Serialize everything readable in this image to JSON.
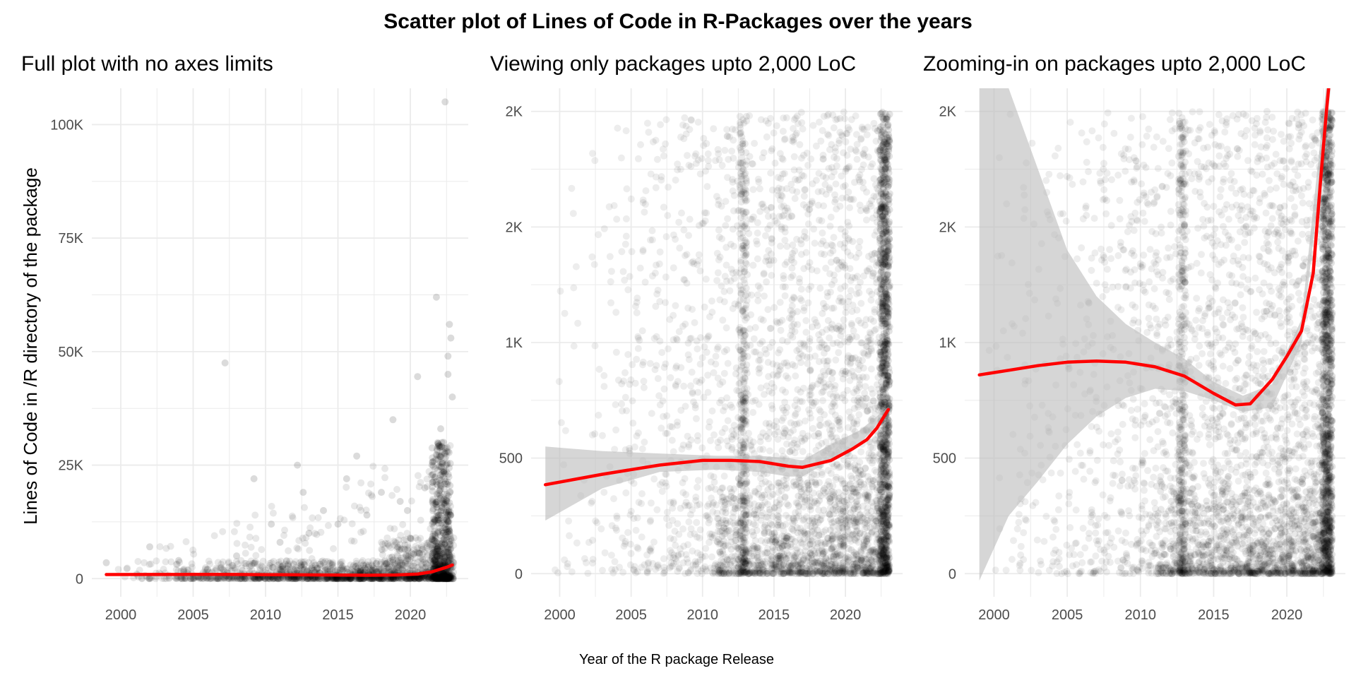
{
  "title": "Scatter plot of Lines of Code in R-Packages over the years",
  "xlabel": "Year of the R package Release",
  "ylabel": "Lines of Code in /R directory of the package",
  "colors": {
    "fit_line": "#ff0000",
    "ribbon": "#bdbdbd",
    "points": "#000000",
    "grid": "#ebebeb"
  },
  "chart_data": [
    {
      "type": "scatter",
      "title": "Full plot with no axes limits",
      "xlim": [
        1998,
        2024
      ],
      "ylim": [
        -4000,
        108000
      ],
      "x_ticks": [
        2000,
        2005,
        2010,
        2015,
        2020
      ],
      "x_tick_labels": [
        "2000",
        "2005",
        "2010",
        "2015",
        "2020"
      ],
      "y_ticks": [
        0,
        25000,
        50000,
        75000,
        100000
      ],
      "y_tick_labels": [
        "0",
        "25K",
        "50K",
        "75K",
        "100K"
      ],
      "grid": true,
      "series": [
        {
          "kind": "points",
          "x": [
            1999,
            2002,
            2004,
            2006,
            2007.2,
            2008,
            2009.2,
            2010.4,
            2011,
            2012.2,
            2012.6,
            2013,
            2014,
            2015,
            2015.6,
            2016.3,
            2017,
            2018,
            2018.8,
            2019.3,
            2019.8,
            2020.5,
            2021,
            2021.5,
            2021.8,
            2022.1,
            2022.3,
            2022.5,
            2022.6,
            2022.7,
            2022.8,
            2022.9,
            2022.4,
            2022.6
          ],
          "y": [
            3500,
            7000,
            4000,
            2000,
            47500,
            5000,
            22000,
            12000,
            8000,
            25000,
            19000,
            10000,
            15000,
            12000,
            22000,
            27000,
            14000,
            19000,
            35000,
            17000,
            15000,
            44500,
            20000,
            25000,
            62000,
            33000,
            30000,
            28000,
            49000,
            56000,
            53000,
            40000,
            105000,
            45000
          ]
        },
        {
          "kind": "smooth",
          "x": [
            1999,
            2002,
            2005,
            2008,
            2011,
            2014,
            2017,
            2019,
            2020.5,
            2021.5,
            2022,
            2022.5,
            2022.9
          ],
          "y": [
            900,
            920,
            930,
            920,
            860,
            800,
            750,
            800,
            1000,
            1500,
            2000,
            2500,
            3000
          ]
        }
      ]
    },
    {
      "type": "scatter",
      "title": "Viewing only packages upto 2,000 LoC",
      "xlim": [
        1998,
        2024
      ],
      "ylim": [
        -100,
        2100
      ],
      "x_ticks": [
        2000,
        2005,
        2010,
        2015,
        2020
      ],
      "x_tick_labels": [
        "2000",
        "2005",
        "2010",
        "2015",
        "2020"
      ],
      "y_ticks": [
        0,
        500,
        1000,
        1500,
        2000
      ],
      "y_tick_labels": [
        "0",
        "500",
        "1K",
        "2K",
        "2K"
      ],
      "grid": true,
      "series": [
        {
          "kind": "ribbon",
          "x": [
            1999,
            2003,
            2007,
            2011,
            2014,
            2016,
            2017,
            2019,
            2021,
            2023
          ],
          "lower": [
            230,
            370,
            440,
            450,
            440,
            420,
            420,
            490,
            560,
            700
          ],
          "upper": [
            550,
            530,
            520,
            510,
            510,
            500,
            490,
            560,
            620,
            720
          ]
        },
        {
          "kind": "smooth",
          "x": [
            1999,
            2003,
            2007,
            2010,
            2012,
            2014,
            2016,
            2017,
            2019,
            2020.5,
            2021.5,
            2022.2,
            2023
          ],
          "y": [
            385,
            430,
            470,
            490,
            490,
            485,
            465,
            460,
            490,
            540,
            580,
            630,
            710
          ]
        }
      ]
    },
    {
      "type": "scatter",
      "title": "Zooming-in on packages upto 2,000 LoC",
      "xlim": [
        1998,
        2024
      ],
      "ylim": [
        -100,
        2100
      ],
      "x_ticks": [
        2000,
        2005,
        2010,
        2015,
        2020
      ],
      "x_tick_labels": [
        "2000",
        "2005",
        "2010",
        "2015",
        "2020"
      ],
      "y_ticks": [
        0,
        500,
        1000,
        1500,
        2000
      ],
      "y_tick_labels": [
        "0",
        "500",
        "1K",
        "2K",
        "2K"
      ],
      "grid": true,
      "series": [
        {
          "kind": "ribbon",
          "x": [
            1999,
            2001,
            2003,
            2005,
            2007,
            2009,
            2011,
            2013,
            2015,
            2017,
            2019,
            2021,
            2023
          ],
          "lower": [
            -30,
            250,
            400,
            560,
            680,
            760,
            800,
            790,
            750,
            700,
            720,
            1000,
            2100
          ],
          "upper": [
            2500,
            2100,
            1750,
            1400,
            1200,
            1080,
            1000,
            930,
            830,
            770,
            820,
            1100,
            2300
          ]
        },
        {
          "kind": "smooth",
          "x": [
            1999,
            2001,
            2003,
            2005,
            2007,
            2009,
            2011,
            2013,
            2015,
            2016.5,
            2017.5,
            2019,
            2020,
            2021,
            2021.8,
            2022.3,
            2022.7,
            2023
          ],
          "y": [
            860,
            880,
            900,
            915,
            920,
            915,
            895,
            855,
            780,
            730,
            735,
            840,
            940,
            1050,
            1300,
            1700,
            2000,
            2200
          ]
        }
      ]
    }
  ]
}
